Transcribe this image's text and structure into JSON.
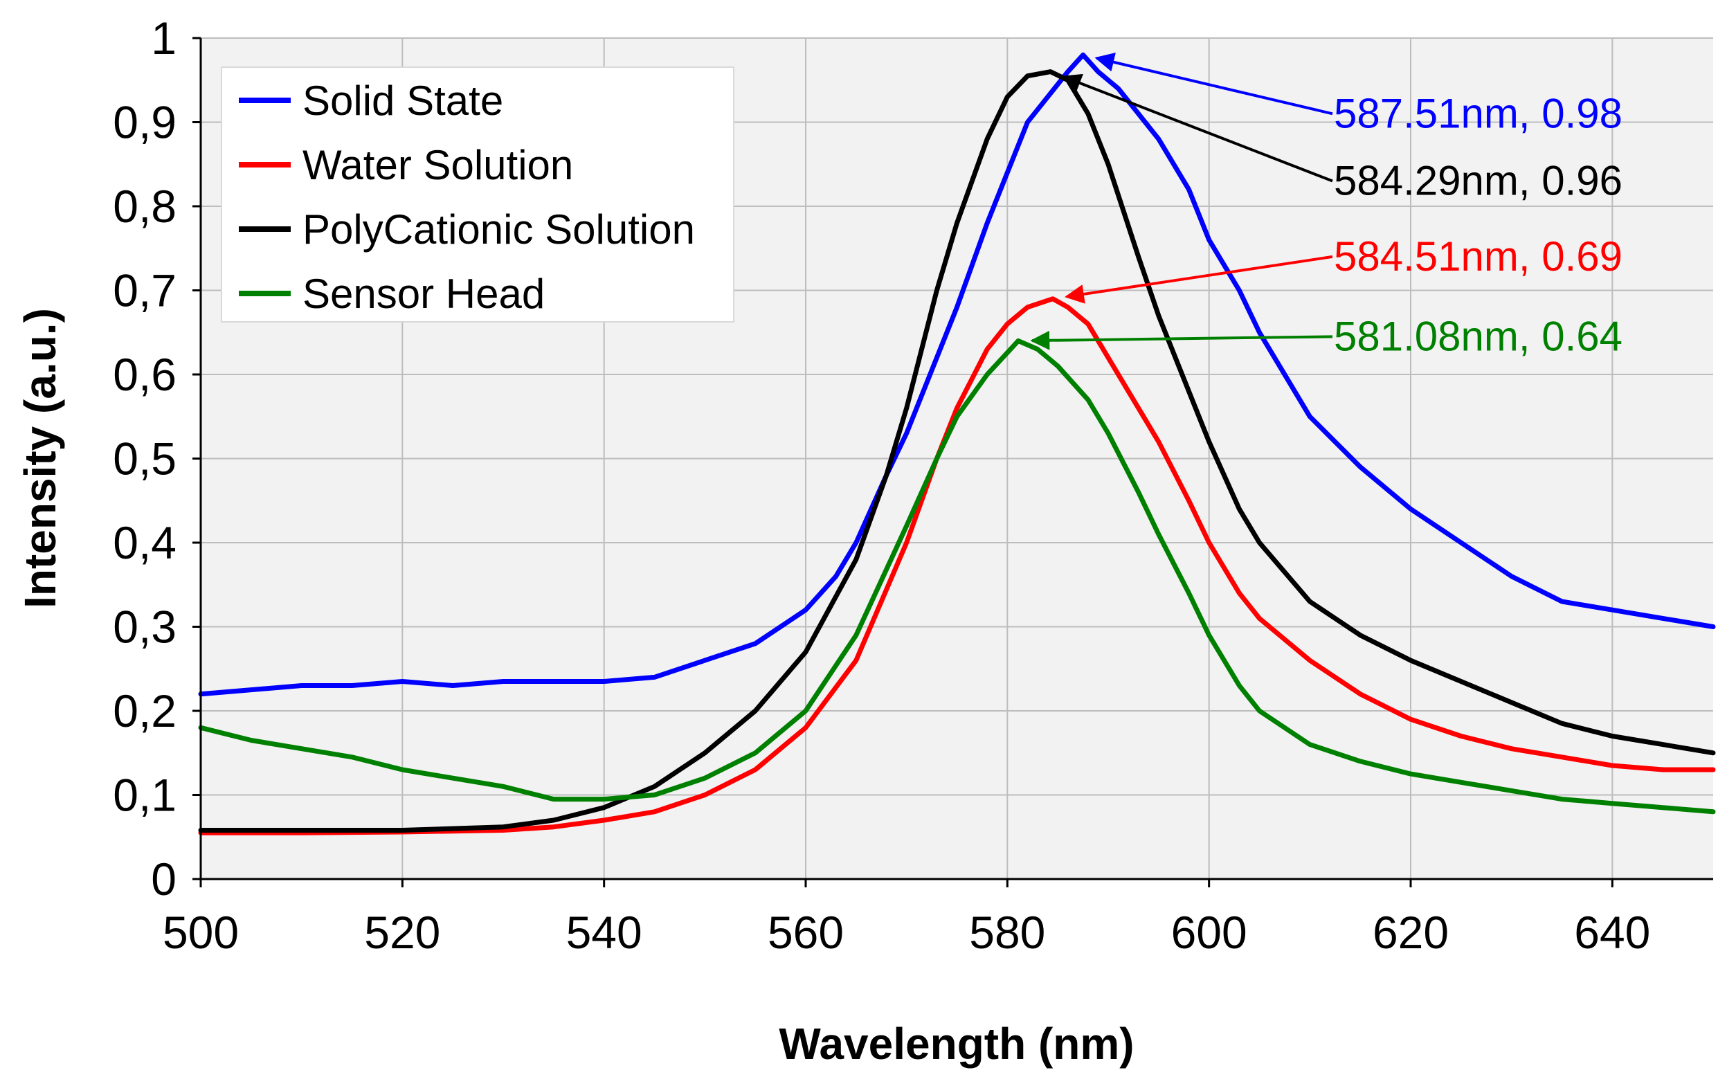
{
  "chart_data": {
    "type": "line",
    "title": "",
    "xlabel": "Wavelength (nm)",
    "ylabel": "Intensity (a.u.)",
    "xlim": [
      500,
      650
    ],
    "ylim": [
      0,
      1
    ],
    "grid": true,
    "legend_position": "top-left",
    "x_ticks": [
      500,
      520,
      540,
      560,
      580,
      600,
      620,
      640
    ],
    "x_tick_labels": [
      "500",
      "520",
      "540",
      "560",
      "580",
      "600",
      "620",
      "640"
    ],
    "y_ticks": [
      0,
      0.1,
      0.2,
      0.3,
      0.4,
      0.5,
      0.6,
      0.7,
      0.8,
      0.9,
      1
    ],
    "y_tick_labels": [
      "0",
      "0,1",
      "0,2",
      "0,3",
      "0,4",
      "0,5",
      "0,6",
      "0,7",
      "0,8",
      "0,9",
      "1"
    ],
    "series": [
      {
        "name": "Solid State",
        "color": "#0000ff",
        "x": [
          500,
          505,
          510,
          515,
          520,
          525,
          530,
          535,
          540,
          545,
          550,
          555,
          560,
          563,
          565,
          568,
          570,
          573,
          575,
          578,
          580,
          582,
          584,
          586,
          587.51,
          589,
          591,
          593,
          595,
          598,
          600,
          603,
          605,
          608,
          610,
          615,
          620,
          625,
          630,
          635,
          640,
          645,
          650
        ],
        "y": [
          0.22,
          0.225,
          0.23,
          0.23,
          0.235,
          0.23,
          0.235,
          0.235,
          0.235,
          0.24,
          0.26,
          0.28,
          0.32,
          0.36,
          0.4,
          0.48,
          0.53,
          0.62,
          0.68,
          0.78,
          0.84,
          0.9,
          0.93,
          0.96,
          0.98,
          0.96,
          0.94,
          0.91,
          0.88,
          0.82,
          0.76,
          0.7,
          0.65,
          0.59,
          0.55,
          0.49,
          0.44,
          0.4,
          0.36,
          0.33,
          0.32,
          0.31,
          0.3
        ]
      },
      {
        "name": "Water Solution",
        "color": "#ff0000",
        "x": [
          500,
          510,
          520,
          530,
          535,
          540,
          545,
          550,
          555,
          560,
          565,
          570,
          573,
          575,
          578,
          580,
          582,
          584.51,
          586,
          588,
          590,
          593,
          595,
          598,
          600,
          603,
          605,
          610,
          615,
          620,
          625,
          630,
          635,
          640,
          645,
          650
        ],
        "y": [
          0.055,
          0.055,
          0.056,
          0.058,
          0.062,
          0.07,
          0.08,
          0.1,
          0.13,
          0.18,
          0.26,
          0.4,
          0.5,
          0.56,
          0.63,
          0.66,
          0.68,
          0.69,
          0.68,
          0.66,
          0.62,
          0.56,
          0.52,
          0.45,
          0.4,
          0.34,
          0.31,
          0.26,
          0.22,
          0.19,
          0.17,
          0.155,
          0.145,
          0.135,
          0.13,
          0.13
        ]
      },
      {
        "name": "PolyCationic Solution",
        "color": "#000000",
        "x": [
          500,
          510,
          520,
          530,
          535,
          540,
          545,
          550,
          555,
          560,
          565,
          568,
          570,
          573,
          575,
          578,
          580,
          582,
          584.29,
          586,
          588,
          590,
          593,
          595,
          598,
          600,
          603,
          605,
          610,
          615,
          620,
          625,
          630,
          635,
          640,
          645,
          650
        ],
        "y": [
          0.058,
          0.058,
          0.058,
          0.062,
          0.07,
          0.085,
          0.11,
          0.15,
          0.2,
          0.27,
          0.38,
          0.48,
          0.56,
          0.7,
          0.78,
          0.88,
          0.93,
          0.955,
          0.96,
          0.95,
          0.91,
          0.85,
          0.74,
          0.67,
          0.58,
          0.52,
          0.44,
          0.4,
          0.33,
          0.29,
          0.26,
          0.235,
          0.21,
          0.185,
          0.17,
          0.16,
          0.15
        ]
      },
      {
        "name": "Sensor Head",
        "color": "#008000",
        "x": [
          500,
          505,
          510,
          515,
          520,
          525,
          530,
          535,
          540,
          545,
          550,
          555,
          560,
          565,
          570,
          573,
          575,
          578,
          581.08,
          583,
          585,
          588,
          590,
          593,
          595,
          598,
          600,
          603,
          605,
          610,
          615,
          620,
          625,
          630,
          635,
          640,
          645,
          650
        ],
        "y": [
          0.18,
          0.165,
          0.155,
          0.145,
          0.13,
          0.12,
          0.11,
          0.095,
          0.095,
          0.1,
          0.12,
          0.15,
          0.2,
          0.29,
          0.42,
          0.5,
          0.55,
          0.6,
          0.64,
          0.63,
          0.61,
          0.57,
          0.53,
          0.46,
          0.41,
          0.34,
          0.29,
          0.23,
          0.2,
          0.16,
          0.14,
          0.125,
          0.115,
          0.105,
          0.095,
          0.09,
          0.085,
          0.08
        ]
      }
    ],
    "annotations": [
      {
        "text": "587.51nm, 0.98",
        "color": "#0000ff",
        "target_x": 587.51,
        "target_y": 0.98,
        "label_y": 0.91
      },
      {
        "text": "584.29nm, 0.96",
        "color": "#000000",
        "target_x": 584.29,
        "target_y": 0.96,
        "label_y": 0.83
      },
      {
        "text": "584.51nm, 0.69",
        "color": "#ff0000",
        "target_x": 584.51,
        "target_y": 0.69,
        "label_y": 0.74
      },
      {
        "text": "581.08nm, 0.64",
        "color": "#008000",
        "target_x": 581.08,
        "target_y": 0.64,
        "label_y": 0.645
      }
    ]
  }
}
